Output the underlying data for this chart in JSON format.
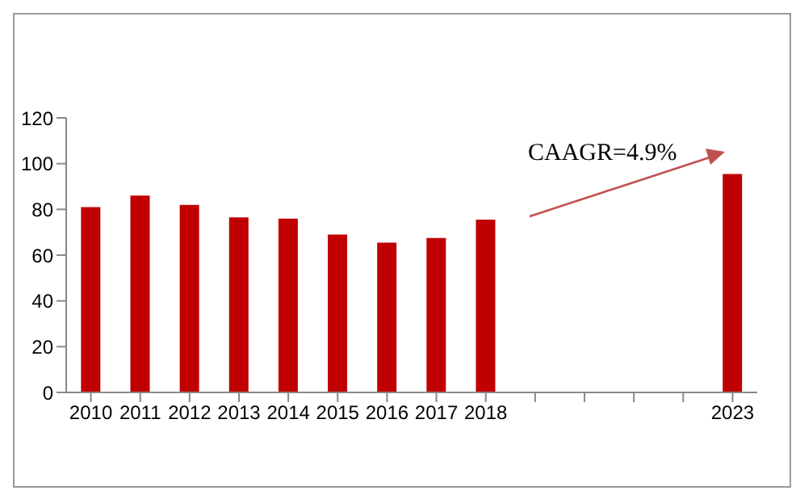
{
  "chart_data": {
    "type": "bar",
    "categories": [
      "2010",
      "2011",
      "2012",
      "2013",
      "2014",
      "2015",
      "2016",
      "2017",
      "2018",
      null,
      null,
      null,
      null,
      "2023"
    ],
    "values": [
      81,
      86,
      82,
      76.5,
      76,
      69,
      65.5,
      67.5,
      75.5,
      null,
      null,
      null,
      null,
      95.5
    ],
    "color": "#c00000",
    "ylim": [
      0,
      120
    ],
    "yticks": [
      0,
      20,
      40,
      60,
      80,
      100,
      120
    ],
    "annotations": [
      "CAAGR=4.9%"
    ]
  }
}
